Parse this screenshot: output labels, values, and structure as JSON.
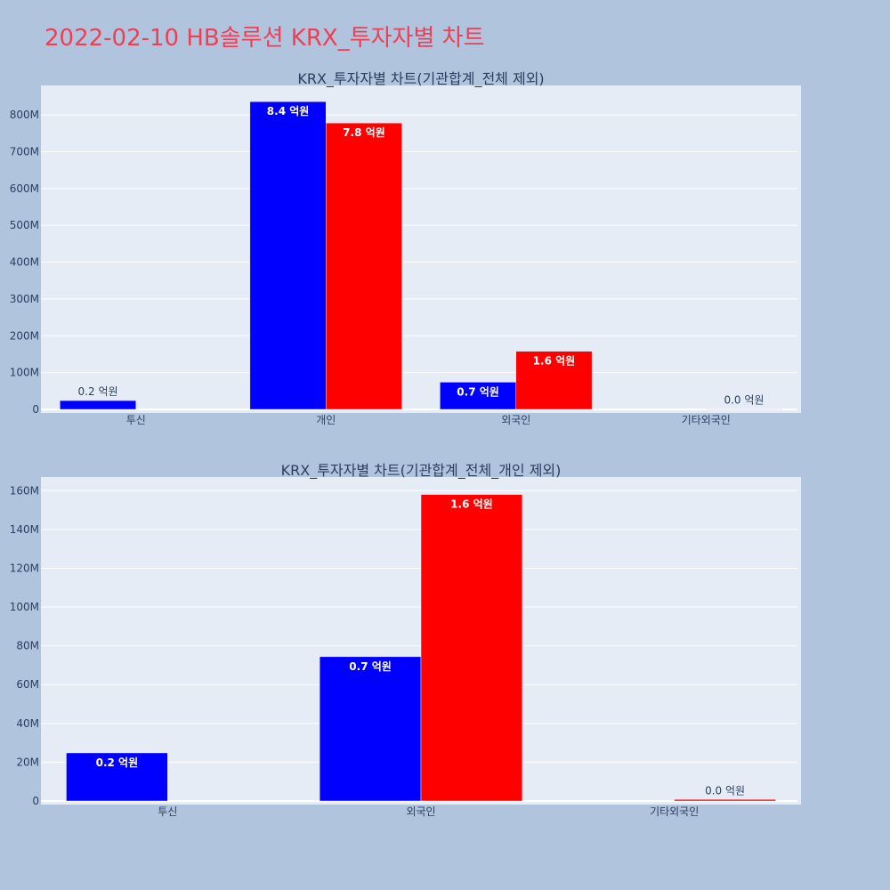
{
  "page_title": "2022-02-10 HB솔루션 KRX_투자자별 차트",
  "colors": {
    "background": "#b0c4de",
    "plot_background": "#e5ecf6",
    "grid": "#ffffff",
    "title": "#ef3f55",
    "axis_text": "#2a3f5f",
    "buy": "#0000ff",
    "sell": "#ff0000"
  },
  "chart_data": [
    {
      "type": "bar",
      "title": "KRX_투자자별 차트(기관합계_전체 제외)",
      "categories": [
        "투신",
        "개인",
        "외국인",
        "기타외국인"
      ],
      "y_tick_labels": [
        "0",
        "100M",
        "200M",
        "300M",
        "400M",
        "500M",
        "600M",
        "700M",
        "800M"
      ],
      "ylim": [
        0,
        880000000
      ],
      "series": [
        {
          "color": "#0000ff",
          "values": [
            24000000,
            836000000,
            74000000,
            0
          ],
          "labels": [
            "0.2 억원",
            "8.4 억원",
            "0.7 억원",
            ""
          ]
        },
        {
          "color": "#ff0000",
          "values": [
            0,
            778000000,
            158000000,
            800000
          ],
          "labels": [
            "",
            "7.8 억원",
            "1.6 억원",
            "0.0 억원"
          ]
        }
      ]
    },
    {
      "type": "bar",
      "title": "KRX_투자자별 차트(기관합계_전체_개인 제외)",
      "categories": [
        "투신",
        "외국인",
        "기타외국인"
      ],
      "y_tick_labels": [
        "0",
        "20M",
        "40M",
        "60M",
        "80M",
        "100M",
        "120M",
        "140M",
        "160M"
      ],
      "ylim": [
        0,
        167000000
      ],
      "series": [
        {
          "color": "#0000ff",
          "values": [
            24800000,
            74400000,
            0
          ],
          "labels": [
            "0.2 억원",
            "0.7 억원",
            ""
          ]
        },
        {
          "color": "#ff0000",
          "values": [
            0,
            158000000,
            800000
          ],
          "labels": [
            "",
            "1.6 억원",
            "0.0 억원"
          ]
        }
      ]
    }
  ]
}
